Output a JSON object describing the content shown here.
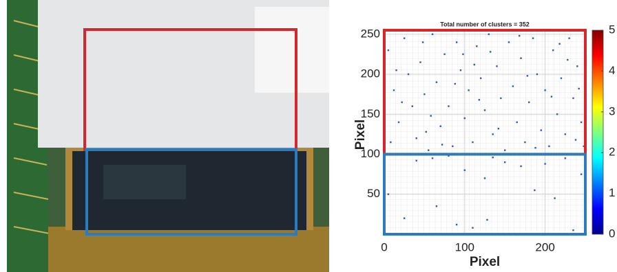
{
  "chart_data": {
    "type": "scatter",
    "title": "Total number of clusters = 352",
    "x_label": "Pixel",
    "y_label": "Pixel",
    "xlim": [
      0,
      250
    ],
    "ylim": [
      0,
      255
    ],
    "xticks": [
      0,
      100,
      200
    ],
    "yticks": [
      50,
      100,
      150,
      200,
      250
    ],
    "grid": true,
    "color": "#2f55c8",
    "x": [
      5,
      25,
      65,
      90,
      110,
      128,
      187,
      212,
      235,
      245,
      170,
      100,
      150,
      60,
      40,
      200,
      225,
      125,
      135,
      80,
      5,
      12,
      18,
      25,
      30,
      35,
      40,
      45,
      50,
      55,
      60,
      65,
      70,
      75,
      80,
      85,
      90,
      95,
      100,
      105,
      110,
      115,
      120,
      125,
      130,
      135,
      140,
      145,
      150,
      155,
      160,
      165,
      170,
      175,
      180,
      185,
      190,
      195,
      200,
      205,
      210,
      215,
      220,
      225,
      230,
      235,
      240,
      245,
      248,
      8,
      22,
      48,
      72,
      98,
      118,
      142,
      168,
      188,
      208,
      228,
      242,
      15,
      58,
      88,
      132,
      178,
      218,
      238,
      52,
      112
    ],
    "y": [
      50,
      20,
      35,
      12,
      8,
      18,
      55,
      45,
      5,
      75,
      85,
      80,
      90,
      95,
      92,
      88,
      95,
      70,
      96,
      98,
      230,
      180,
      140,
      245,
      200,
      160,
      120,
      215,
      175,
      105,
      250,
      190,
      135,
      225,
      160,
      110,
      240,
      205,
      145,
      180,
      115,
      235,
      195,
      155,
      250,
      125,
      210,
      170,
      105,
      240,
      185,
      140,
      220,
      115,
      165,
      245,
      200,
      130,
      180,
      110,
      230,
      150,
      195,
      125,
      245,
      170,
      210,
      140,
      110,
      115,
      165,
      240,
      112,
      225,
      168,
      132,
      248,
      108,
      172,
      218,
      182,
      205,
      148,
      188,
      228,
      198,
      238,
      118,
      128,
      212
    ],
    "regions": [
      {
        "color": "#d7262b",
        "y": [
          100,
          255
        ]
      },
      {
        "color": "#2a7bbf",
        "y": [
          0,
          100
        ]
      }
    ],
    "colorbar": {
      "clim": [
        0,
        5
      ],
      "ticks": [
        0,
        1,
        2,
        3,
        4,
        5
      ]
    }
  }
}
